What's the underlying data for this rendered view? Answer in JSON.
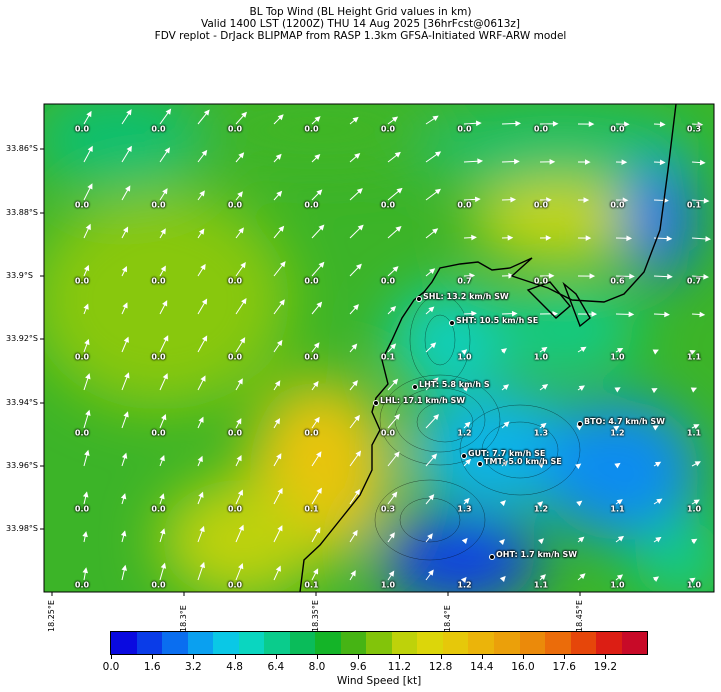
{
  "title": {
    "line1": "BL Top Wind (BL Height Grid values in km)",
    "line2": "Valid 1400 LST (1200Z) THU 14 Aug 2025 [36hrFcst@0613z]",
    "line3": "FDV replot - DrJack BLIPMAP from RASP 1.3km GFSA-Initiated WRF-ARW model"
  },
  "axes": {
    "lat_labels": [
      "33.86°S",
      "33.88°S",
      "33.9°S",
      "33.92°S",
      "33.94°S",
      "33.96°S",
      "33.98°S"
    ],
    "lon_labels": [
      "18.25°E",
      "18.3°E",
      "18.35°E",
      "18.4°E",
      "18.45°E"
    ]
  },
  "grid_values": [
    [
      "0.0",
      "0.0",
      "0.0",
      "0.0",
      "0.0",
      "0.0",
      "0.0",
      "0.0",
      "0.3"
    ],
    [
      "0.0",
      "0.0",
      "0.0",
      "0.0",
      "0.0",
      "0.0",
      "0.0",
      "0.0",
      "0.1"
    ],
    [
      "0.0",
      "0.0",
      "0.0",
      "0.0",
      "0.0",
      "0.7",
      "0.0",
      "0.6",
      "0.7"
    ],
    [
      "0.0",
      "0.0",
      "0.0",
      "0.0",
      "0.1",
      "1.0",
      "1.0",
      "1.0",
      "1.1"
    ],
    [
      "0.0",
      "0.0",
      "0.0",
      "0.0",
      "0.0",
      "1.2",
      "1.3",
      "1.2",
      "1.1"
    ],
    [
      "0.0",
      "0.0",
      "0.0",
      "0.1",
      "0.3",
      "1.3",
      "1.2",
      "1.1",
      "1.0"
    ],
    [
      "0.0",
      "0.0",
      "0.0",
      "0.1",
      "1.0",
      "1.2",
      "1.1",
      "1.0",
      "1.0"
    ]
  ],
  "stations": [
    {
      "label": "SHL: 13.2 km/h SW"
    },
    {
      "label": "SHT: 10.5 km/h SE"
    },
    {
      "label": "LHT: 5.8 km/h S"
    },
    {
      "label": "LHL: 17.1 km/h SW"
    },
    {
      "label": "BTO: 4.7 km/h SW"
    },
    {
      "label": "GUT: 7.7 km/h SE"
    },
    {
      "label": "TMT: 5.0 km/h SE"
    },
    {
      "label": "OHT: 1.7 km/h SW"
    }
  ],
  "colorbar": {
    "label": "Wind Speed [kt]",
    "ticks": [
      "0.0",
      "1.6",
      "3.2",
      "4.8",
      "6.4",
      "8.0",
      "9.6",
      "11.2",
      "12.8",
      "14.4",
      "16.0",
      "17.6",
      "19.2"
    ],
    "colors": [
      "#0a0ae0",
      "#0a3ce8",
      "#0a6ef0",
      "#0aa0f0",
      "#0ac8e6",
      "#0ad6c0",
      "#0acc8c",
      "#0abc5a",
      "#14b428",
      "#46b414",
      "#82c40a",
      "#bed20a",
      "#dcd60a",
      "#e6c80a",
      "#ebb40a",
      "#eba00a",
      "#eb8a0a",
      "#eb6c0a",
      "#e6460a",
      "#dc1e14",
      "#c80a28"
    ]
  }
}
